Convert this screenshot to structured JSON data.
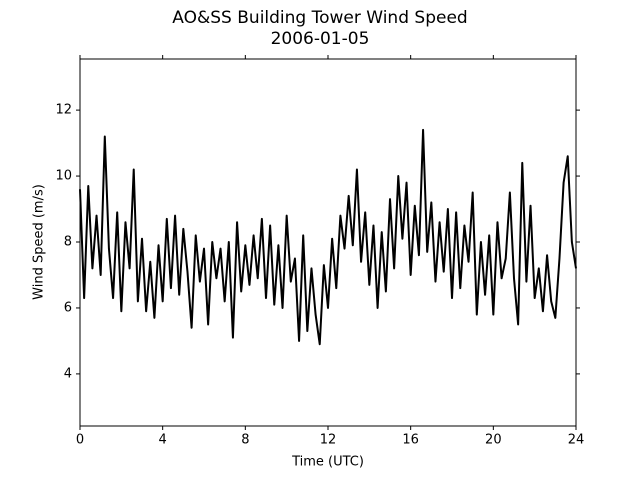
{
  "chart_data": {
    "type": "line",
    "title": "AO&SS Building Tower Wind Speed",
    "subtitle": "2006-01-05",
    "x_label": "Time (UTC)",
    "y_label": "Wind Speed (m/s)",
    "xlim": [
      0,
      24
    ],
    "xticks": [
      0,
      4,
      8,
      12,
      16,
      20,
      24
    ],
    "ylim": [
      2.42,
      13.55
    ],
    "yticks": [
      4,
      6,
      8,
      10,
      12
    ],
    "grid": false,
    "series": [
      {
        "color": "#000000",
        "x": [
          0,
          0.2,
          0.4,
          0.6,
          0.8,
          1,
          1.2,
          1.4,
          1.6,
          1.8,
          2,
          2.2,
          2.4,
          2.6,
          2.8,
          3,
          3.2,
          3.4,
          3.6,
          3.8,
          4,
          4.2,
          4.4,
          4.6,
          4.8,
          5,
          5.2,
          5.4,
          5.6,
          5.8,
          6,
          6.2,
          6.4,
          6.6,
          6.8,
          7,
          7.2,
          7.4,
          7.6,
          7.8,
          8,
          8.2,
          8.4,
          8.6,
          8.8,
          9,
          9.2,
          9.4,
          9.6,
          9.8,
          10,
          10.2,
          10.4,
          10.6,
          10.8,
          11,
          11.2,
          11.4,
          11.6,
          11.8,
          12,
          12.2,
          12.4,
          12.6,
          12.8,
          13,
          13.2,
          13.4,
          13.6,
          13.8,
          14,
          14.2,
          14.4,
          14.6,
          14.8,
          15,
          15.2,
          15.4,
          15.6,
          15.8,
          16,
          16.2,
          16.4,
          16.6,
          16.8,
          17,
          17.2,
          17.4,
          17.6,
          17.8,
          18,
          18.2,
          18.4,
          18.6,
          18.8,
          19,
          19.2,
          19.4,
          19.6,
          19.8,
          20,
          20.2,
          20.4,
          20.6,
          20.8,
          21,
          21.2,
          21.4,
          21.6,
          21.8,
          22,
          22.2,
          22.4,
          22.6,
          22.8,
          23,
          23.2,
          23.4,
          23.6,
          23.8,
          24
        ],
        "values": [
          9.6,
          6.3,
          9.7,
          7.2,
          8.8,
          7.0,
          11.2,
          7.8,
          6.3,
          8.9,
          5.9,
          8.6,
          7.2,
          10.2,
          6.2,
          8.1,
          5.9,
          7.4,
          5.7,
          7.9,
          6.2,
          8.7,
          6.6,
          8.8,
          6.4,
          8.4,
          7.1,
          5.4,
          8.2,
          6.8,
          7.8,
          5.5,
          8.0,
          6.9,
          7.8,
          6.2,
          8.0,
          5.1,
          8.6,
          6.5,
          7.9,
          6.7,
          8.2,
          6.9,
          8.7,
          6.3,
          8.5,
          6.1,
          7.9,
          6.0,
          8.8,
          6.8,
          7.5,
          5.0,
          8.2,
          5.3,
          7.2,
          5.8,
          4.9,
          7.3,
          6.0,
          8.1,
          6.6,
          8.8,
          7.8,
          9.4,
          7.9,
          10.2,
          7.4,
          8.9,
          6.7,
          8.5,
          6.0,
          8.3,
          6.5,
          9.3,
          7.2,
          10.0,
          8.1,
          9.8,
          7.0,
          9.1,
          7.6,
          11.4,
          7.7,
          9.2,
          6.8,
          8.6,
          7.1,
          9.0,
          6.3,
          8.9,
          6.6,
          8.5,
          7.4,
          9.5,
          5.8,
          8.0,
          6.4,
          8.2,
          5.8,
          8.6,
          6.9,
          7.5,
          9.5,
          6.9,
          5.5,
          10.4,
          6.8,
          9.1,
          6.3,
          7.2,
          5.9,
          7.6,
          6.2,
          5.7,
          7.5,
          9.8,
          10.6,
          8.0,
          7.2
        ]
      }
    ]
  }
}
